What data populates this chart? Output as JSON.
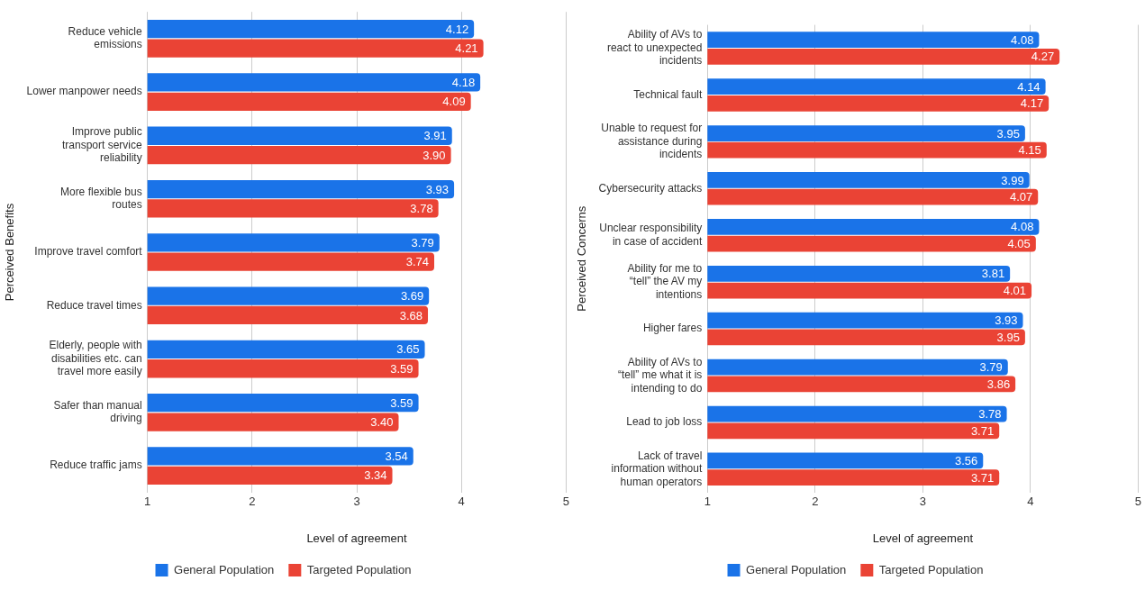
{
  "chart_data": [
    {
      "type": "bar",
      "orientation": "horizontal",
      "xlabel": "Level of agreement",
      "ylabel": "Perceived Benefits",
      "categories": [
        "Reduce vehicle emissions",
        "Lower manpower needs",
        "Improve public transport service reliability",
        "More flexible bus routes",
        "Improve travel comfort",
        "Reduce travel times",
        "Elderly, people with disabilities etc. can travel more easily",
        "Safer than manual driving",
        "Reduce traffic jams"
      ],
      "series": [
        {
          "name": "General Population",
          "color": "#1a73e8",
          "values": [
            4.12,
            4.18,
            3.91,
            3.93,
            3.79,
            3.69,
            3.65,
            3.59,
            3.54
          ],
          "value_labels": [
            "4.12",
            "4.18",
            "3.91",
            "3.93",
            "3.79",
            "3.69",
            "3.65",
            "3.59",
            "3.54"
          ]
        },
        {
          "name": "Targeted Population",
          "color": "#ea4335",
          "values": [
            4.21,
            4.09,
            3.9,
            3.78,
            3.74,
            3.68,
            3.59,
            3.4,
            3.34
          ],
          "value_labels": [
            "4.21",
            "4.09",
            "3.90",
            "3.78",
            "3.74",
            "3.68",
            "3.59",
            "3.40",
            "3.34"
          ]
        }
      ],
      "xlim": [
        1,
        5
      ],
      "xticks": [
        1,
        2,
        3,
        4,
        5
      ],
      "grid": "x",
      "legend": "bottom"
    },
    {
      "type": "bar",
      "orientation": "horizontal",
      "xlabel": "Level of agreement",
      "ylabel": "Perceived Concerns",
      "categories": [
        "Ability of AVs to react to unexpected incidents",
        "Technical fault",
        "Unable to request for assistance during incidents",
        "Cybersecurity attacks",
        "Unclear responsibility in case of accident",
        "Ability for me to “tell” the AV my intentions",
        "Higher fares",
        "Ability of AVs to “tell” me what it is intending to do",
        "Lead to job loss",
        "Lack of travel information without human operators"
      ],
      "series": [
        {
          "name": "General Population",
          "color": "#1a73e8",
          "values": [
            4.08,
            4.14,
            3.95,
            3.99,
            4.08,
            3.81,
            3.93,
            3.79,
            3.78,
            3.56
          ],
          "value_labels": [
            "4.08",
            "4.14",
            "3.95",
            "3.99",
            "4.08",
            "3.81",
            "3.93",
            "3.79",
            "3.78",
            "3.56"
          ]
        },
        {
          "name": "Targeted Population",
          "color": "#ea4335",
          "values": [
            4.27,
            4.17,
            4.15,
            4.07,
            4.05,
            4.01,
            3.95,
            3.86,
            3.71,
            3.71
          ],
          "value_labels": [
            "4.27",
            "4.17",
            "4.15",
            "4.07",
            "4.05",
            "4.01",
            "3.95",
            "3.86",
            "3.71",
            "3.71"
          ]
        }
      ],
      "xlim": [
        1,
        5
      ],
      "xticks": [
        1,
        2,
        3,
        4,
        5
      ],
      "grid": "x",
      "legend": "bottom"
    }
  ]
}
